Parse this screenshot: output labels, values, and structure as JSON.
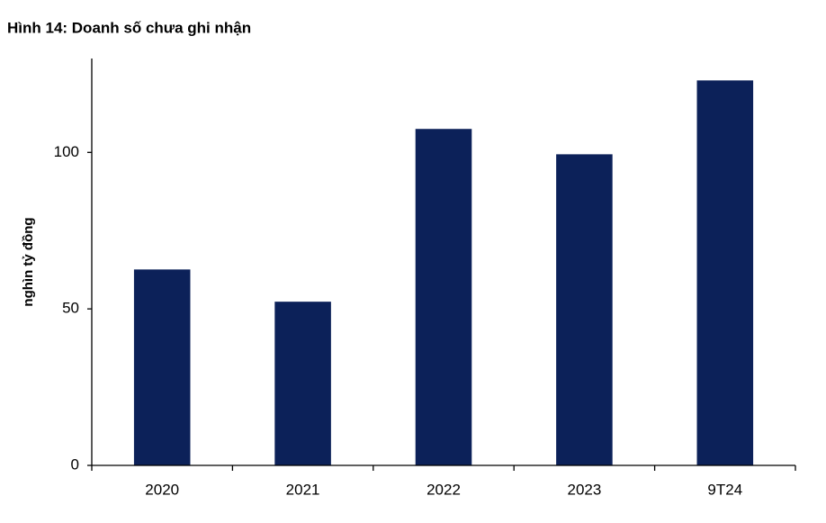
{
  "chart_data": {
    "type": "bar",
    "title": "Hình 14: Doanh số chưa ghi nhận",
    "y_label": "nghìn tỷ đồng",
    "categories": [
      "2020",
      "2021",
      "2022",
      "2023",
      "9T24"
    ],
    "values": [
      62.6,
      52.3,
      107.5,
      99.4,
      123.0
    ],
    "color": "#0c2159",
    "ylim": [
      0,
      130
    ],
    "yticks": [
      0,
      50,
      100
    ],
    "grid": false
  }
}
